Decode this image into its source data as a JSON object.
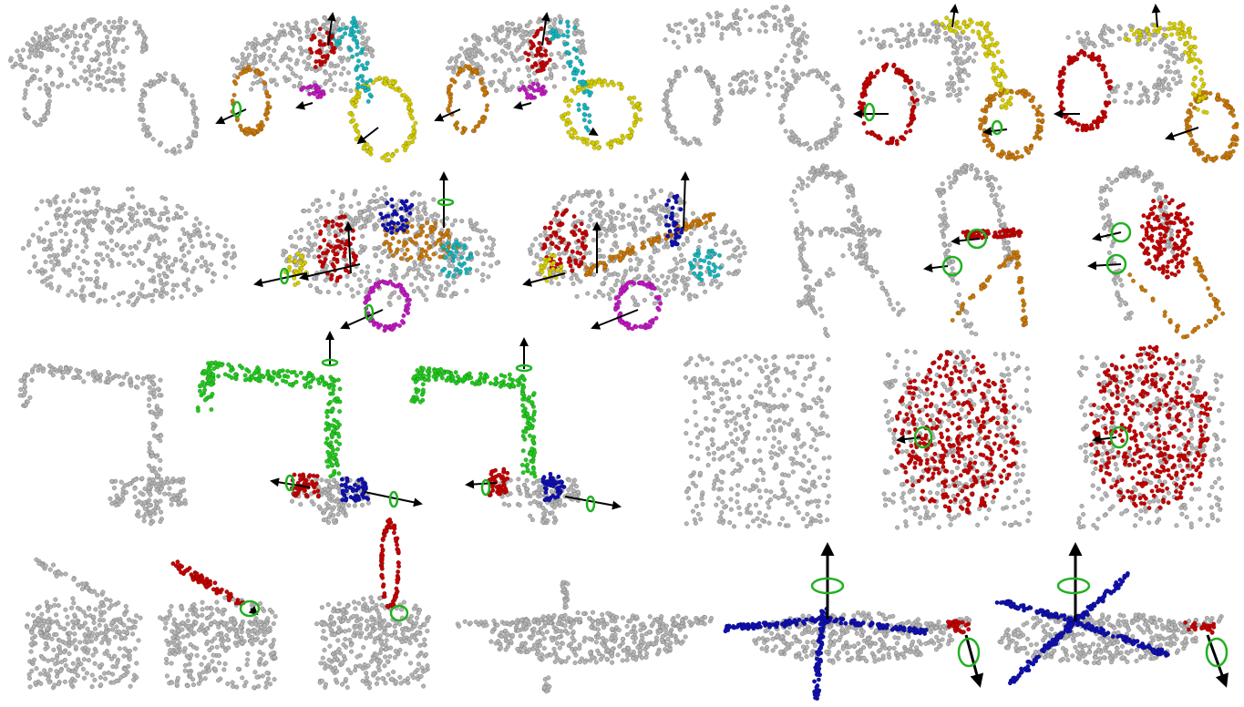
{
  "figure": {
    "background": "#ffffff",
    "point_color": "#b4b4b4",
    "point_stroke": "#6e6e6e",
    "axis_color": "#000000",
    "ring_color": "#22b022",
    "part_colors": {
      "red": "#c40000",
      "orange": "#c8780a",
      "yellow": "#d4cc00",
      "cyan": "#16b4bc",
      "magenta": "#c018c0",
      "green": "#22c81e",
      "blue": "#1010b0"
    },
    "rows": [
      {
        "objects": [
          {
            "name": "trike",
            "views": [
              "rest",
              "articulated",
              "articulated"
            ]
          },
          {
            "name": "motorcycle",
            "views": [
              "rest",
              "articulated",
              "articulated"
            ]
          }
        ]
      },
      {
        "objects": [
          {
            "name": "car",
            "views": [
              "rest",
              "articulated",
              "articulated"
            ]
          },
          {
            "name": "folding-chair",
            "views": [
              "rest",
              "articulated",
              "articulated"
            ]
          }
        ]
      },
      {
        "objects": [
          {
            "name": "faucet",
            "views": [
              "rest",
              "articulated",
              "articulated"
            ]
          },
          {
            "name": "box-lid",
            "views": [
              "rest",
              "articulated",
              "articulated"
            ]
          }
        ]
      },
      {
        "objects": [
          {
            "name": "toilet",
            "views": [
              "rest",
              "articulated",
              "articulated"
            ]
          },
          {
            "name": "helicopter",
            "views": [
              "rest",
              "articulated",
              "articulated"
            ]
          }
        ]
      }
    ]
  }
}
